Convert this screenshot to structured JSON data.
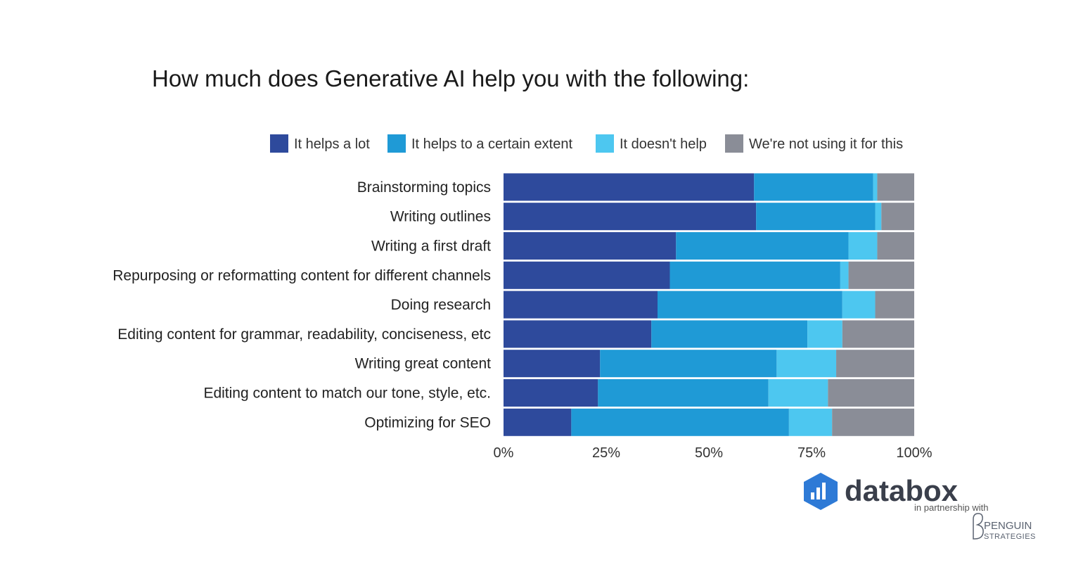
{
  "chart_data": {
    "type": "bar",
    "orientation": "horizontal",
    "stacked": true,
    "title": "How much does Generative AI help you with the following:",
    "xlabel": "",
    "ylabel": "",
    "xlim": [
      0,
      100
    ],
    "x_ticks": [
      "0%",
      "25%",
      "50%",
      "75%",
      "100%"
    ],
    "x_tick_values": [
      0,
      25,
      50,
      75,
      100
    ],
    "legend_position": "top",
    "categories": [
      "Brainstorming topics",
      "Writing outlines",
      "Writing a first draft",
      "Repurposing or reformatting content for different channels",
      "Doing research",
      "Editing content for grammar, readability, conciseness, etc",
      "Writing great content",
      "Editing content to match our tone, style, etc.",
      "Optimizing for SEO"
    ],
    "series": [
      {
        "name": "It helps a lot",
        "color": "#2e4a9c",
        "values": [
          61,
          61.5,
          42,
          40.5,
          37.5,
          36,
          23.5,
          23,
          16.5
        ]
      },
      {
        "name": "It helps to a certain extent",
        "color": "#1f9ad6",
        "values": [
          29,
          29,
          42,
          41.5,
          45,
          38,
          43,
          41.5,
          53
        ]
      },
      {
        "name": "It doesn't help",
        "color": "#4dc7f0",
        "values": [
          1,
          1.5,
          7,
          2,
          8,
          8.5,
          14.5,
          14.5,
          10.5
        ]
      },
      {
        "name": "We're not using it for this",
        "color": "#8a8d97",
        "values": [
          9,
          8,
          9,
          16,
          9.5,
          17.5,
          19,
          21,
          20
        ]
      }
    ]
  },
  "branding": {
    "name": "databox",
    "partner_line": "in partnership with",
    "partner_name": "PENGUIN",
    "partner_sub": "STRATEGIES",
    "accent_color": "#2e7ad6"
  }
}
